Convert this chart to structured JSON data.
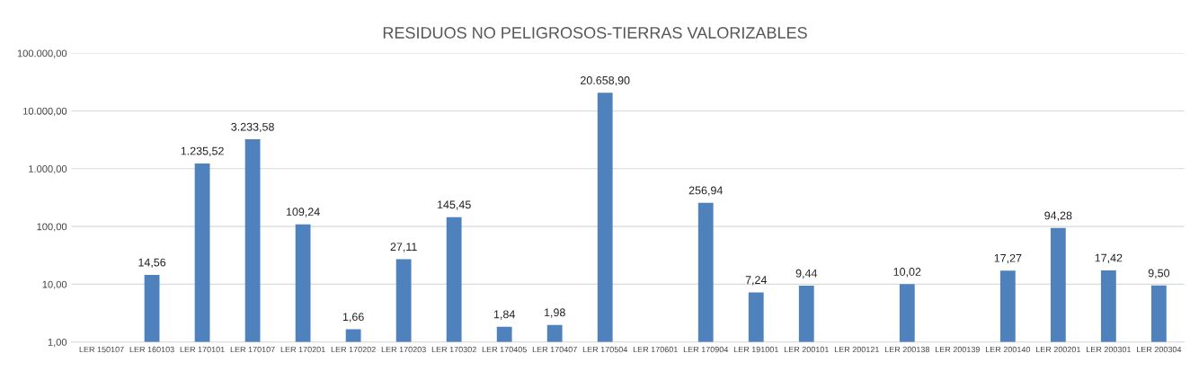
{
  "chart_data": {
    "type": "bar",
    "title": "RESIDUOS NO PELIGROSOS-TIERRAS VALORIZABLES",
    "categories": [
      "LER 150107",
      "LER 160103",
      "LER 170101",
      "LER 170107",
      "LER 170201",
      "LER 170202",
      "LER 170203",
      "LER 170302",
      "LER 170405",
      "LER 170407",
      "LER 170504",
      "LER 170601",
      "LER 170904",
      "LER 191001",
      "LER 200101",
      "LER 200121",
      "LER 200138",
      "LER 200139",
      "LER 200140",
      "LER 200201",
      "LER 200301",
      "LER 200304"
    ],
    "values": [
      null,
      14.56,
      1235.52,
      3233.58,
      109.24,
      1.66,
      27.11,
      145.45,
      1.84,
      1.98,
      20658.9,
      null,
      256.94,
      7.24,
      9.44,
      null,
      10.02,
      null,
      17.27,
      94.28,
      17.42,
      9.5
    ],
    "value_labels": [
      null,
      "14,56",
      "1.235,52",
      "3.233,58",
      "109,24",
      "1,66",
      "27,11",
      "145,45",
      "1,84",
      "1,98",
      "20.658,90",
      null,
      "256,94",
      "7,24",
      "9,44",
      null,
      "10,02",
      null,
      "17,27",
      "94,28",
      "17,42",
      "9,50"
    ],
    "color": "#4f81bd",
    "log": true,
    "ylim": [
      1,
      100000
    ],
    "yticks": [
      {
        "value": 1,
        "label": "1,00"
      },
      {
        "value": 10,
        "label": "10,00"
      },
      {
        "value": 100,
        "label": "100,00"
      },
      {
        "value": 1000,
        "label": "1.000,00"
      },
      {
        "value": 10000,
        "label": "10.000,00"
      },
      {
        "value": 100000,
        "label": "100.000,00"
      }
    ],
    "grid": "y"
  }
}
